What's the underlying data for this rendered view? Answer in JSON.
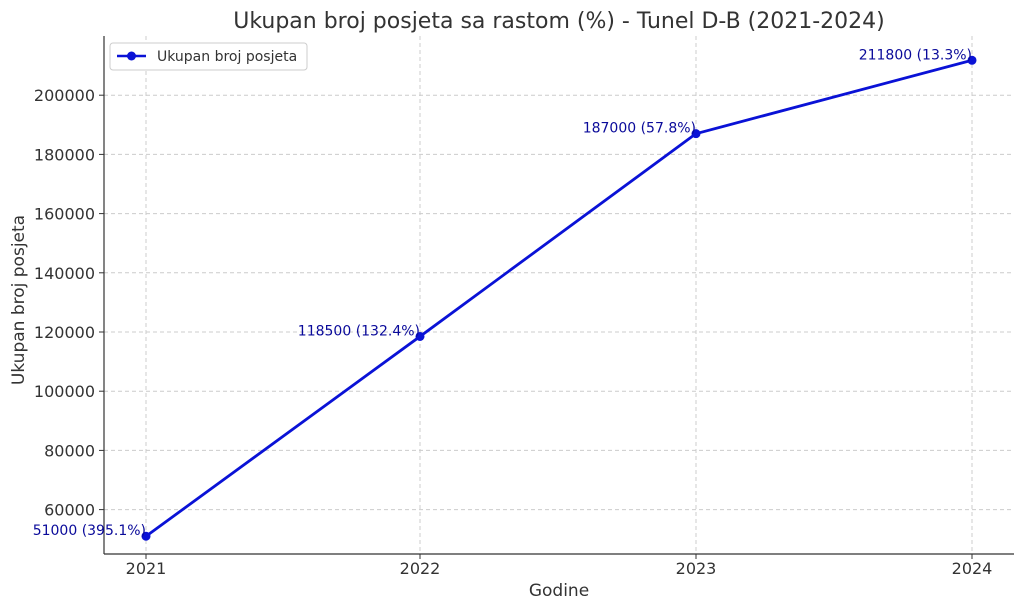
{
  "chart_data": {
    "type": "line",
    "title": "Ukupan broj posjeta sa rastom (%) - Tunel D-B (2021-2024)",
    "xlabel": "Godine",
    "ylabel": "Ukupan broj posjeta",
    "categories": [
      "2021",
      "2022",
      "2023",
      "2024"
    ],
    "series": [
      {
        "name": "Ukupan broj posjeta",
        "values": [
          51000,
          118500,
          187000,
          211800
        ],
        "labels": [
          "51000 (395.1%)",
          "118500 (132.4%)",
          "187000 (57.8%)",
          "211800 (13.3%)"
        ],
        "color": "#0000dd"
      }
    ],
    "ylim": [
      45000,
      220000
    ],
    "yticks": [
      60000,
      80000,
      100000,
      120000,
      140000,
      160000,
      180000,
      200000
    ],
    "grid": true,
    "legend_position": "top-left",
    "colors": {
      "line": "#0a12d6",
      "label_text": "#0a0a9a",
      "text": "#333333",
      "grid": "#cccccc"
    }
  }
}
